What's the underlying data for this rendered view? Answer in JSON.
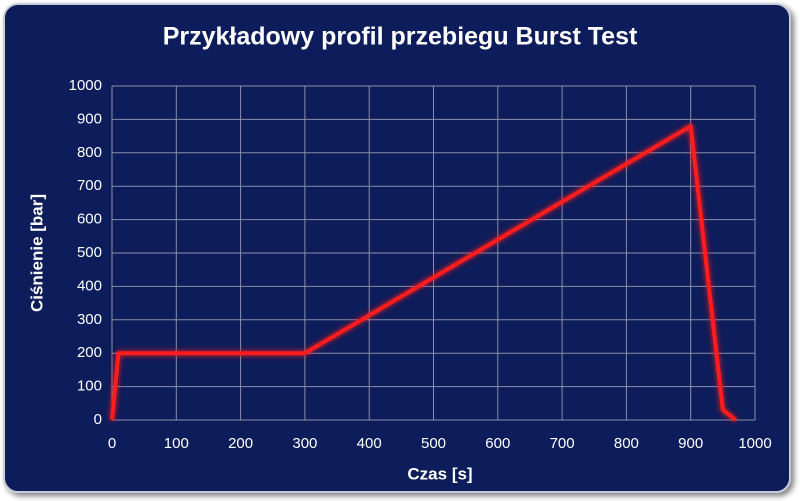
{
  "chart_data": {
    "type": "line",
    "title": "Przykładowy profil przebiegu Burst Test",
    "x_label": "Czas [s]",
    "y_label": "Ciśnienie [bar]",
    "x": [
      0,
      10,
      300,
      900,
      950,
      970
    ],
    "series": [
      {
        "color": "#ff1a1a",
        "values": [
          0,
          200,
          200,
          880,
          30,
          0
        ]
      }
    ],
    "xlim": [
      0,
      1000
    ],
    "xticks": [
      0,
      100,
      200,
      300,
      400,
      500,
      600,
      700,
      800,
      900,
      1000
    ],
    "ylim": [
      0,
      1000
    ],
    "yticks": [
      0,
      100,
      200,
      300,
      400,
      500,
      600,
      700,
      800,
      900,
      1000
    ],
    "grid": true
  }
}
